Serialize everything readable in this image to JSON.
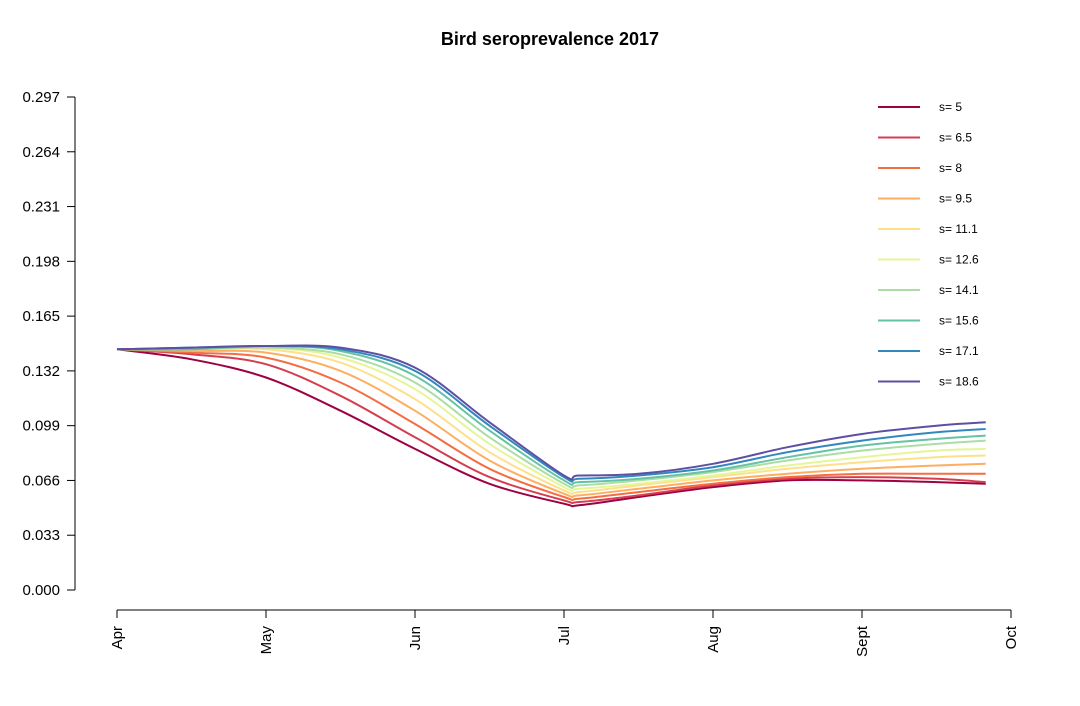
{
  "chart_data": {
    "type": "line",
    "title": "Bird seroprevalence 2017",
    "xlabel": "",
    "ylabel": "",
    "x_ticks": [
      "Apr",
      "May",
      "Jun",
      "Jul",
      "Aug",
      "Sept",
      "Oct"
    ],
    "y_ticks": [
      "0.297",
      "0.264",
      "0.231",
      "0.198",
      "0.165",
      "0.132",
      "0.099",
      "0.066",
      "0.033",
      "0.000"
    ],
    "ylim": [
      0,
      0.297
    ],
    "xlim": [
      0,
      6
    ],
    "grid": false,
    "legend_position": "top-right",
    "x": [
      0,
      0.5,
      1,
      1.5,
      2,
      2.5,
      3,
      3.1,
      3.5,
      4,
      4.5,
      5,
      5.5,
      5.83
    ],
    "series": [
      {
        "name": "s= 5",
        "color": "#9E0142",
        "values": [
          0.145,
          0.139,
          0.128,
          0.108,
          0.085,
          0.064,
          0.052,
          0.051,
          0.056,
          0.062,
          0.066,
          0.066,
          0.065,
          0.064
        ]
      },
      {
        "name": "s= 6.5",
        "color": "#D53E4F",
        "values": [
          0.145,
          0.142,
          0.136,
          0.117,
          0.092,
          0.068,
          0.054,
          0.053,
          0.057,
          0.063,
          0.067,
          0.068,
          0.067,
          0.065
        ]
      },
      {
        "name": "s= 8",
        "color": "#F46D43",
        "values": [
          0.145,
          0.143,
          0.14,
          0.125,
          0.1,
          0.073,
          0.056,
          0.055,
          0.059,
          0.064,
          0.068,
          0.07,
          0.07,
          0.07
        ]
      },
      {
        "name": "s= 9.5",
        "color": "#FDAE61",
        "values": [
          0.145,
          0.144,
          0.143,
          0.132,
          0.108,
          0.078,
          0.058,
          0.057,
          0.061,
          0.066,
          0.07,
          0.073,
          0.075,
          0.076
        ]
      },
      {
        "name": "s= 11.1",
        "color": "#FEE08B",
        "values": [
          0.145,
          0.145,
          0.145,
          0.137,
          0.115,
          0.083,
          0.06,
          0.059,
          0.063,
          0.068,
          0.073,
          0.077,
          0.08,
          0.081
        ]
      },
      {
        "name": "s= 12.6",
        "color": "#E6F598",
        "values": [
          0.145,
          0.145,
          0.146,
          0.14,
          0.121,
          0.088,
          0.062,
          0.061,
          0.064,
          0.069,
          0.075,
          0.08,
          0.084,
          0.085
        ]
      },
      {
        "name": "s= 14.1",
        "color": "#ABDDA4",
        "values": [
          0.145,
          0.145,
          0.146,
          0.142,
          0.125,
          0.092,
          0.064,
          0.063,
          0.066,
          0.071,
          0.078,
          0.084,
          0.088,
          0.09
        ]
      },
      {
        "name": "s= 15.6",
        "color": "#66C2A5",
        "values": [
          0.145,
          0.145,
          0.147,
          0.144,
          0.129,
          0.096,
          0.066,
          0.065,
          0.067,
          0.072,
          0.08,
          0.087,
          0.091,
          0.093
        ]
      },
      {
        "name": "s= 17.1",
        "color": "#3288BD",
        "values": [
          0.145,
          0.146,
          0.147,
          0.145,
          0.132,
          0.099,
          0.068,
          0.067,
          0.069,
          0.074,
          0.083,
          0.09,
          0.095,
          0.097
        ]
      },
      {
        "name": "s= 18.6",
        "color": "#5E4FA2",
        "values": [
          0.145,
          0.146,
          0.147,
          0.146,
          0.134,
          0.101,
          0.069,
          0.069,
          0.07,
          0.076,
          0.086,
          0.094,
          0.099,
          0.101
        ]
      }
    ]
  }
}
